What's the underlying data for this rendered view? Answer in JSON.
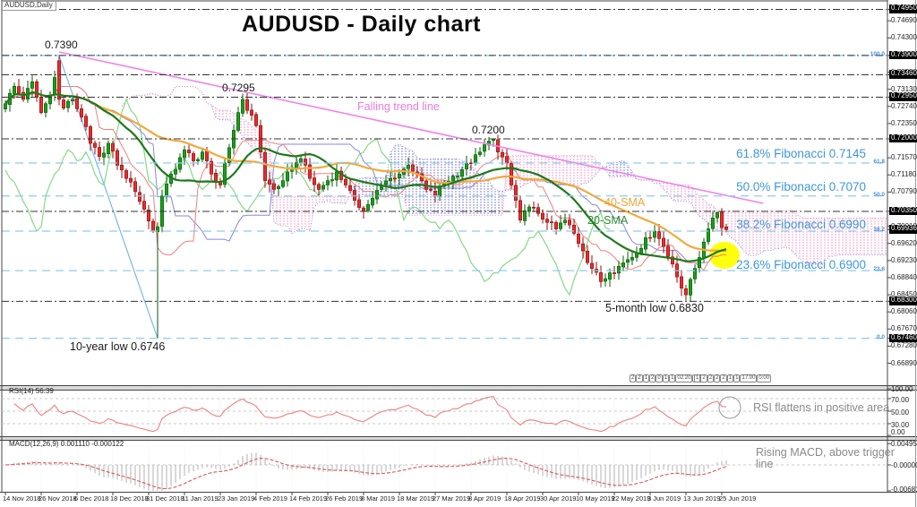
{
  "window": {
    "symbol_label": "AUDUSD,Daily"
  },
  "title": "AUDUSD - Daily chart",
  "annotations": {
    "high_0739": "0.7390",
    "high_0729": "0.7295",
    "high_0720": "0.7200",
    "falling_trend": "Falling trend line",
    "sma40": "40-SMA",
    "sma20": "20-SMA",
    "fib618": "61.8% Fibonacci 0.7145",
    "fib500": "50.0% Fibonacci 0.7070",
    "fib382": "38.2% Fibonacci 0.6990",
    "fib236": "23.6% Fibonacci 0.6900",
    "five_month_low": "5-month low 0.6830",
    "ten_year_low": "10-year low 0.6746"
  },
  "price_axis": {
    "ticks": [
      "0.74690",
      "0.74300",
      "0.73520",
      "0.73130",
      "0.72740",
      "0.72350",
      "0.71570",
      "0.71180",
      "0.70790",
      "0.70010",
      "0.69620",
      "0.69230",
      "0.68840",
      "0.68450",
      "0.68060",
      "0.67670",
      "0.67280",
      "0.66890"
    ],
    "boxes": [
      "0.74950",
      "0.73900",
      "0.73460",
      "0.72950",
      "0.72000",
      "0.70350",
      "0.69936",
      "0.68300",
      "0.67460"
    ],
    "fib_pcts": [
      {
        "t": "100.0",
        "p": 0.739
      },
      {
        "t": "61.8",
        "p": 0.7145
      },
      {
        "t": "50.0",
        "p": 0.707
      },
      {
        "t": "38.2",
        "p": 0.699
      },
      {
        "t": "23.6",
        "p": 0.69
      },
      {
        "t": "0.0",
        "p": 0.6746
      }
    ]
  },
  "date_axis": [
    "14 Nov 2018",
    "26 Nov 2018",
    "6 Dec 2018",
    "18 Dec 2018",
    "31 Dec 2018",
    "11 Jan 2019",
    "23 Jan 2019",
    "4 Feb 2019",
    "14 Feb 2019",
    "26 Feb 2019",
    "8 Mar 2019",
    "18 Mar 2019",
    "27 Mar 2019",
    "8 Apr 2019",
    "18 Apr 2019",
    "30 Apr 2019",
    "10 May 2019",
    "22 May 2019",
    "3 Jun 2019",
    "13 Jun 2019",
    "25 Jun 2019"
  ],
  "rsi_panel": {
    "label": "RSI(14) 56.39",
    "note": "RSI flattens in positive area",
    "scale": [
      "100.00",
      "70.00",
      "50.00",
      "30.00",
      "0.00"
    ],
    "last_value": 56.39
  },
  "macd_panel": {
    "label": "MACD(12,26,9) 0.001110 -0.000122",
    "note": "Rising MACD, above trigger line",
    "scale": [
      "0.004955",
      "-0.000000",
      "-0.006818"
    ],
    "last_macd": 0.00111,
    "last_signal": -0.000122
  },
  "session_tags": [
    {
      "items": [
        "2",
        "2",
        "1",
        "2",
        "0",
        "1",
        "1",
        "02:20",
        "0:30"
      ]
    },
    {
      "items": [
        "1",
        "2",
        "2",
        "2",
        "2",
        "1",
        "1",
        "17:00",
        "0:00"
      ]
    }
  ],
  "colors": {
    "bull_fill": "#18a018",
    "bull_stroke": "#0a5a0a",
    "bear_fill": "#e62e2e",
    "bear_stroke": "#8f0f0f",
    "sma20": "#1c7a1c",
    "sma40": "#f2a93b",
    "tenkan": "#ef8080",
    "kijun": "#8888dd",
    "chikou": "#86d986",
    "cloud_blue": "#6666cc",
    "cloud_pink": "#ee88bb",
    "fib_line": "#8ecbee",
    "fib_text": "#3e97d9",
    "trend_line": "#ee82ee",
    "baseline": "#7ab8e8",
    "dashdot": "#333333",
    "highlight": "#ffff00",
    "rsi_line": "#ef8080",
    "macd_hist": "#b0b0b0",
    "macd_signal": "#e05555",
    "note_gray": "#8a8a8a"
  },
  "chart_data": {
    "type": "candlestick",
    "symbol": "AUDUSD",
    "timeframe": "Daily",
    "title": "AUDUSD - Daily chart",
    "ylim": [
      0.6639,
      0.75
    ],
    "x_range": [
      "14 Nov 2018",
      "3 Jul 2019"
    ],
    "num_candles": 162,
    "close_anchors": [
      [
        0,
        0.728
      ],
      [
        2,
        0.732
      ],
      [
        4,
        0.729
      ],
      [
        6,
        0.733
      ],
      [
        8,
        0.726
      ],
      [
        10,
        0.73
      ],
      [
        11,
        0.734
      ],
      [
        12,
        0.729
      ],
      [
        13,
        0.727
      ],
      [
        15,
        0.729
      ],
      [
        17,
        0.725
      ],
      [
        19,
        0.719
      ],
      [
        21,
        0.716
      ],
      [
        23,
        0.719
      ],
      [
        25,
        0.714
      ],
      [
        27,
        0.711
      ],
      [
        29,
        0.708
      ],
      [
        31,
        0.704
      ],
      [
        33,
        0.699
      ],
      [
        34,
        0.7
      ],
      [
        35,
        0.707
      ],
      [
        37,
        0.712
      ],
      [
        40,
        0.7175
      ],
      [
        42,
        0.715
      ],
      [
        44,
        0.717
      ],
      [
        46,
        0.712
      ],
      [
        48,
        0.7095
      ],
      [
        50,
        0.718
      ],
      [
        52,
        0.726
      ],
      [
        53,
        0.729
      ],
      [
        54,
        0.7265
      ],
      [
        56,
        0.723
      ],
      [
        57,
        0.717
      ],
      [
        58,
        0.7105
      ],
      [
        60,
        0.7085
      ],
      [
        62,
        0.7105
      ],
      [
        64,
        0.713
      ],
      [
        66,
        0.7155
      ],
      [
        68,
        0.711
      ],
      [
        70,
        0.7085
      ],
      [
        72,
        0.7105
      ],
      [
        74,
        0.7125
      ],
      [
        76,
        0.7095
      ],
      [
        78,
        0.706
      ],
      [
        80,
        0.7035
      ],
      [
        82,
        0.7065
      ],
      [
        84,
        0.7095
      ],
      [
        86,
        0.711
      ],
      [
        88,
        0.712
      ],
      [
        90,
        0.714
      ],
      [
        92,
        0.712
      ],
      [
        94,
        0.7085
      ],
      [
        96,
        0.707
      ],
      [
        98,
        0.71
      ],
      [
        100,
        0.7115
      ],
      [
        102,
        0.713
      ],
      [
        104,
        0.7145
      ],
      [
        106,
        0.717
      ],
      [
        108,
        0.7195
      ],
      [
        109,
        0.72
      ],
      [
        110,
        0.717
      ],
      [
        112,
        0.7145
      ],
      [
        113,
        0.7095
      ],
      [
        114,
        0.706
      ],
      [
        115,
        0.7015
      ],
      [
        117,
        0.7045
      ],
      [
        119,
        0.703
      ],
      [
        121,
        0.701
      ],
      [
        123,
        0.6995
      ],
      [
        125,
        0.7015
      ],
      [
        127,
        0.6985
      ],
      [
        129,
        0.6945
      ],
      [
        131,
        0.6905
      ],
      [
        133,
        0.6875
      ],
      [
        135,
        0.6895
      ],
      [
        137,
        0.691
      ],
      [
        139,
        0.6925
      ],
      [
        141,
        0.694
      ],
      [
        143,
        0.6975
      ],
      [
        145,
        0.699
      ],
      [
        147,
        0.6955
      ],
      [
        149,
        0.6915
      ],
      [
        151,
        0.686
      ],
      [
        152,
        0.6845
      ],
      [
        153,
        0.688
      ],
      [
        154,
        0.6905
      ],
      [
        155,
        0.693
      ],
      [
        156,
        0.6965
      ],
      [
        157,
        0.6995
      ],
      [
        158,
        0.702
      ],
      [
        159,
        0.7032
      ],
      [
        160,
        0.6998
      ],
      [
        161,
        0.69936
      ]
    ],
    "special_candles": {
      "12": {
        "o": 0.7378,
        "h": 0.739
      },
      "34": {
        "l": 0.6746
      },
      "109": {
        "h": 0.72
      },
      "152": {
        "l": 0.6832
      },
      "159": {
        "h": 0.7035
      }
    },
    "key_levels": {
      "spike_high": 0.739,
      "late_jan_high": 0.7295,
      "april_high": 0.72,
      "five_month_low": 0.683,
      "ten_year_low": 0.6746,
      "current_price": 0.69936,
      "horizontal_lines": [
        0.7495,
        0.739,
        0.7346,
        0.7295,
        0.72,
        0.7035,
        0.683
      ]
    },
    "fibonacci": {
      "high": 0.739,
      "low": 0.6746,
      "levels": [
        {
          "pct": 100.0,
          "price": 0.739
        },
        {
          "pct": 61.8,
          "price": 0.7145
        },
        {
          "pct": 50.0,
          "price": 0.707
        },
        {
          "pct": 38.2,
          "price": 0.699
        },
        {
          "pct": 23.6,
          "price": 0.69
        },
        {
          "pct": 0.0,
          "price": 0.6746
        }
      ]
    },
    "indicators": {
      "sma_periods": [
        20,
        40
      ],
      "ichimoku_periods": [
        9,
        26,
        52
      ],
      "rsi_period": 14,
      "rsi_last": 56.39,
      "macd_periods": [
        12,
        26,
        9
      ],
      "macd_last": 0.00111,
      "macd_signal_last": -0.000122
    }
  }
}
